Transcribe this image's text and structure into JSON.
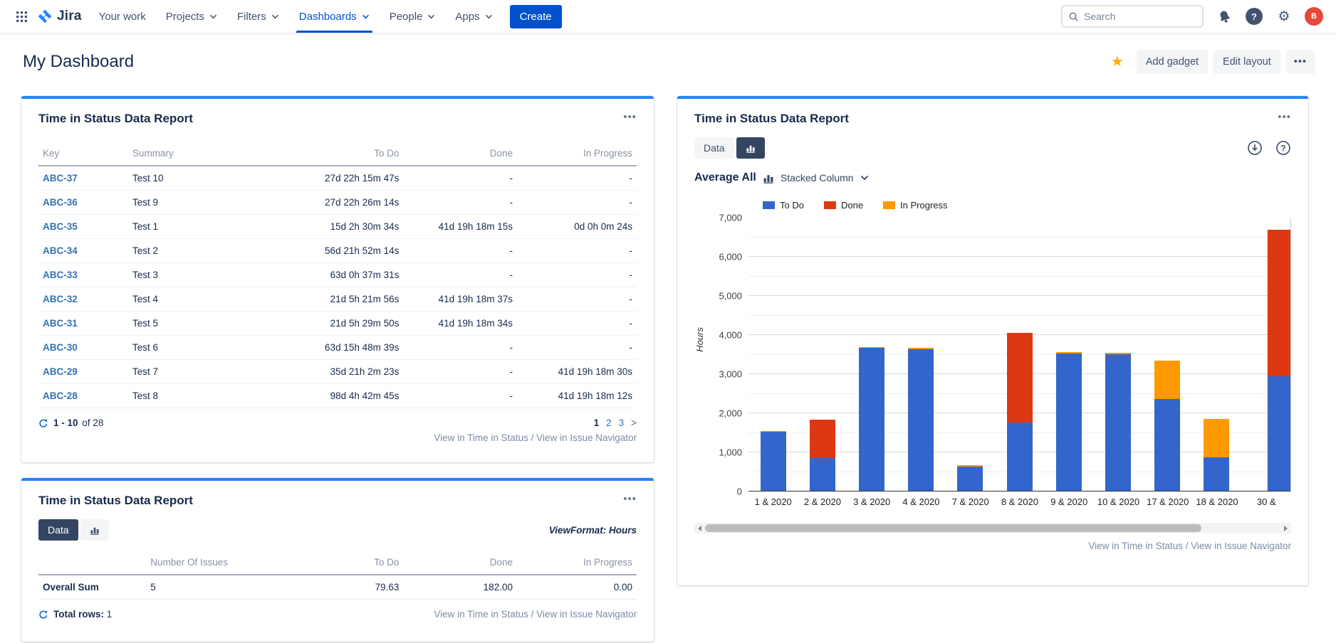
{
  "nav": {
    "logo_text": "Jira",
    "items": [
      {
        "label": "Your work",
        "has_chevron": false,
        "active": false
      },
      {
        "label": "Projects",
        "has_chevron": true,
        "active": false
      },
      {
        "label": "Filters",
        "has_chevron": true,
        "active": false
      },
      {
        "label": "Dashboards",
        "has_chevron": true,
        "active": true
      },
      {
        "label": "People",
        "has_chevron": true,
        "active": false
      },
      {
        "label": "Apps",
        "has_chevron": true,
        "active": false
      }
    ],
    "create_label": "Create",
    "search_placeholder": "Search",
    "avatar_initial": "B"
  },
  "header": {
    "title": "My Dashboard",
    "add_gadget_label": "Add gadget",
    "edit_layout_label": "Edit layout"
  },
  "ui": {
    "more": "•••",
    "link_time_in_status": "View in Time in Status",
    "link_separator": " / ",
    "link_issue_navigator": "View in Issue Navigator"
  },
  "icons": {
    "star": "★",
    "gear": "⚙",
    "help": "?"
  },
  "issues_panel": {
    "title": "Time in Status Data Report",
    "columns": [
      "Key",
      "Summary",
      "To Do",
      "Done",
      "In Progress"
    ],
    "rows": [
      {
        "key": "ABC-37",
        "summary": "Test 10",
        "todo": "27d 22h 15m 47s",
        "done": "-",
        "inprogress": "-"
      },
      {
        "key": "ABC-36",
        "summary": "Test 9",
        "todo": "27d 22h 26m 14s",
        "done": "-",
        "inprogress": "-"
      },
      {
        "key": "ABC-35",
        "summary": "Test 1",
        "todo": "15d 2h 30m 34s",
        "done": "41d 19h 18m 15s",
        "inprogress": "0d 0h 0m 24s"
      },
      {
        "key": "ABC-34",
        "summary": "Test 2",
        "todo": "56d 21h 52m 14s",
        "done": "-",
        "inprogress": "-"
      },
      {
        "key": "ABC-33",
        "summary": "Test 3",
        "todo": "63d 0h 37m 31s",
        "done": "-",
        "inprogress": "-"
      },
      {
        "key": "ABC-32",
        "summary": "Test 4",
        "todo": "21d 5h 21m 56s",
        "done": "41d 19h 18m 37s",
        "inprogress": "-"
      },
      {
        "key": "ABC-31",
        "summary": "Test 5",
        "todo": "21d 5h 29m 50s",
        "done": "41d 19h 18m 34s",
        "inprogress": "-"
      },
      {
        "key": "ABC-30",
        "summary": "Test 6",
        "todo": "63d 15h 48m 39s",
        "done": "-",
        "inprogress": "-"
      },
      {
        "key": "ABC-29",
        "summary": "Test 7",
        "todo": "35d 21h 2m 23s",
        "done": "-",
        "inprogress": "41d 19h 18m 30s"
      },
      {
        "key": "ABC-28",
        "summary": "Test 8",
        "todo": "98d 4h 42m 45s",
        "done": "-",
        "inprogress": "41d 19h 18m 12s"
      }
    ],
    "pagination": {
      "range": "1 - 10",
      "of": "of 28",
      "pages": [
        "1",
        "2",
        "3"
      ],
      "current": "1",
      "next_label": ">"
    }
  },
  "sum_panel": {
    "title": "Time in Status Data Report",
    "data_tab_label": "Data",
    "view_format": "ViewFormat: Hours",
    "columns": [
      "",
      "Number Of Issues",
      "To Do",
      "Done",
      "In Progress"
    ],
    "row": {
      "label": "Overall Sum",
      "number_of_issues": "5",
      "todo": "79.63",
      "done": "182.00",
      "inprogress": "0.00"
    },
    "total_rows_label": "Total rows:",
    "total_rows_value": "1"
  },
  "chart_panel": {
    "title": "Time in Status Data Report",
    "data_tab_label": "Data",
    "average_label": "Average All",
    "chart_type_label": "Stacked Column"
  },
  "chart_data": {
    "type": "bar",
    "stacked": true,
    "ylabel": "Hours",
    "ylim": [
      0,
      7000
    ],
    "major_step": 1000,
    "minor_step": 500,
    "grid": true,
    "legend_position": "top",
    "y_ticks": [
      "0",
      "1,000",
      "2,000",
      "3,000",
      "4,000",
      "5,000",
      "6,000",
      "7,000"
    ],
    "categories": [
      "1 & 2020",
      "2 & 2020",
      "3 & 2020",
      "4 & 2020",
      "7 & 2020",
      "8 & 2020",
      "9 & 2020",
      "10 & 2020",
      "17 & 2020",
      "18 & 2020",
      "30 &"
    ],
    "series": [
      {
        "name": "To Do",
        "color": "#3366CC",
        "values": [
          1520,
          850,
          3670,
          3640,
          640,
          1770,
          3530,
          3510,
          2360,
          870,
          2950
        ]
      },
      {
        "name": "Done",
        "color": "#DC3912",
        "values": [
          0,
          990,
          0,
          0,
          0,
          2280,
          0,
          0,
          0,
          0,
          3750
        ]
      },
      {
        "name": "In Progress",
        "color": "#FF9900",
        "values": [
          30,
          0,
          30,
          30,
          25,
          0,
          30,
          30,
          990,
          990,
          0
        ]
      }
    ]
  }
}
